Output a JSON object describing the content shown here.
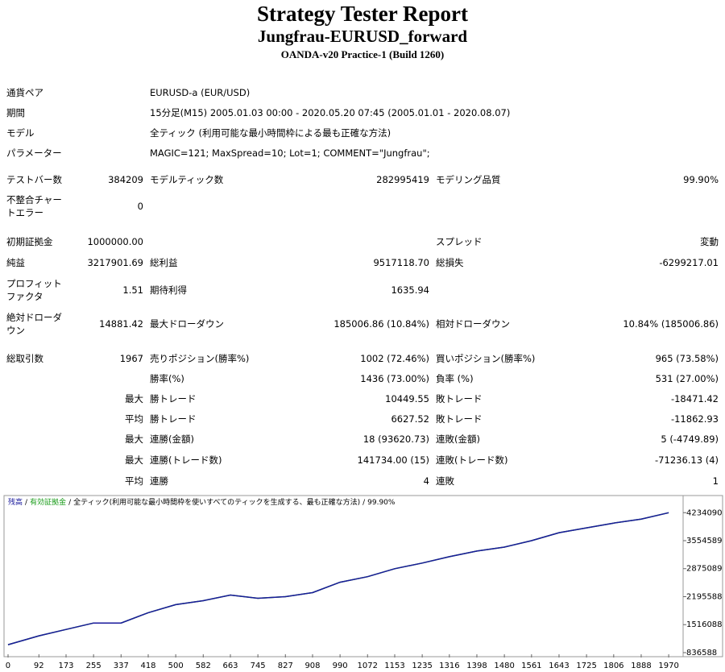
{
  "header": {
    "title": "Strategy Tester Report",
    "subtitle": "Jungfrau-EURUSD_forward",
    "server": "OANDA-v20 Practice-1 (Build 1260)"
  },
  "settings": {
    "rows": [
      [
        "通貨ペア",
        "EURUSD-a (EUR/USD)"
      ],
      [
        "期間",
        "15分足(M15) 2005.01.03 00:00 - 2020.05.20 07:45 (2005.01.01 - 2020.08.07)"
      ],
      [
        "モデル",
        "全ティック (利用可能な最小時間枠による最も正確な方法)"
      ],
      [
        "パラメーター",
        "MAGIC=121; MaxSpread=10; Lot=1; COMMENT=\"Jungfrau\";"
      ]
    ]
  },
  "stats": {
    "rows": [
      [
        "テストバー数",
        "384209",
        "モデルティック数",
        "282995419",
        "モデリング品質",
        "99.90%"
      ],
      [
        "不整合チャートエラー",
        "0",
        null,
        null,
        null,
        null
      ],
      [
        "初期証拠金",
        "1000000.00",
        null,
        null,
        "スプレッド",
        "変動"
      ],
      [
        "純益",
        "3217901.69",
        "総利益",
        "9517118.70",
        "総損失",
        "-6299217.01"
      ],
      [
        "プロフィットファクタ",
        "1.51",
        "期待利得",
        "1635.94",
        null,
        null
      ],
      [
        "絶対ドローダウン",
        "14881.42",
        "最大ドローダウン",
        "185006.86 (10.84%)",
        "相対ドローダウン",
        "10.84% (185006.86)"
      ],
      [
        "総取引数",
        "1967",
        "売りポジション(勝率%)",
        "1002 (72.46%)",
        "買いポジション(勝率%)",
        "965 (73.58%)"
      ],
      [
        null,
        null,
        "勝率(%)",
        "1436 (73.00%)",
        "負率 (%)",
        "531 (27.00%)"
      ],
      [
        null,
        "最大",
        "勝トレード",
        "10449.55",
        "敗トレード",
        "-18471.42"
      ],
      [
        null,
        "平均",
        "勝トレード",
        "6627.52",
        "敗トレード",
        "-11862.93"
      ],
      [
        null,
        "最大",
        "連勝(金額)",
        "18 (93620.73)",
        "連敗(金額)",
        "5 (-4749.89)"
      ],
      [
        null,
        "最大",
        "連勝(トレード数)",
        "141734.00 (15)",
        "連敗(トレード数)",
        "-71236.13 (4)"
      ],
      [
        null,
        "平均",
        "連勝",
        "4",
        "連敗",
        "1"
      ]
    ]
  },
  "chart_data": {
    "type": "line",
    "legend_separator": "/",
    "legend_note": "全ティック(利用可能な最小時間枠を使いすべてのティックを生成する、最も正確な方法)",
    "quality": "99.90%",
    "x": [
      0,
      92,
      173,
      255,
      337,
      418,
      500,
      582,
      663,
      745,
      827,
      908,
      990,
      1072,
      1153,
      1235,
      1316,
      1398,
      1480,
      1561,
      1643,
      1725,
      1806,
      1888,
      1970
    ],
    "series": [
      {
        "name": "残高",
        "color": "#1a1a9c",
        "values": [
          1030000,
          1244000,
          1400000,
          1555000,
          1555000,
          1807000,
          2001000,
          2098000,
          2234000,
          2157000,
          2195000,
          2293000,
          2545000,
          2681000,
          2875000,
          3011000,
          3166000,
          3302000,
          3399000,
          3555000,
          3749000,
          3865000,
          3982000,
          4079000,
          4234000
        ]
      },
      {
        "name": "有効証拠金",
        "color": "#1a9c1a",
        "values": [
          1030000,
          1244000,
          1400000,
          1555000,
          1555000,
          1807000,
          2001000,
          2098000,
          2234000,
          2157000,
          2195000,
          2293000,
          2545000,
          2681000,
          2875000,
          3011000,
          3166000,
          3302000,
          3399000,
          3555000,
          3749000,
          3865000,
          3982000,
          4079000,
          4234000
        ]
      }
    ],
    "xlim": [
      -12,
      2013
    ],
    "xticks": [
      0,
      92,
      173,
      255,
      337,
      418,
      500,
      582,
      663,
      745,
      827,
      908,
      990,
      1072,
      1153,
      1235,
      1316,
      1398,
      1480,
      1561,
      1643,
      1725,
      1806,
      1888,
      1970
    ],
    "ylim": [
      797000,
      4650000
    ],
    "yticks": [
      836588,
      1516088,
      2195588,
      2875089,
      3554589,
      4234090
    ]
  }
}
